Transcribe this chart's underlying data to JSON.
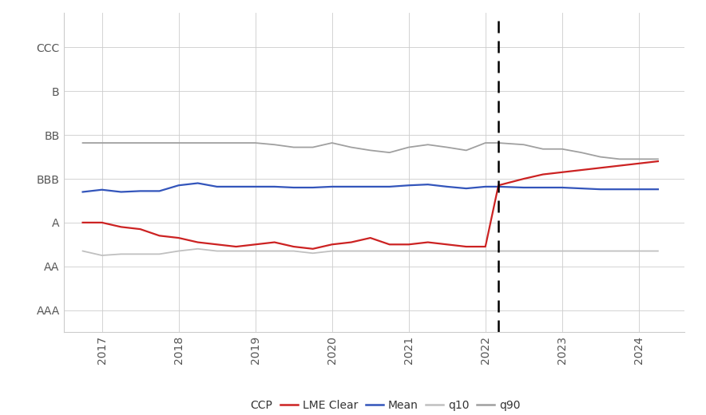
{
  "rating_labels": [
    "AAA",
    "AA",
    "A",
    "BBB",
    "BB",
    "B",
    "CCC"
  ],
  "rating_values": [
    1,
    2,
    3,
    4,
    5,
    6,
    7
  ],
  "dashed_line_x": 2022.17,
  "x_ticks": [
    2017,
    2018,
    2019,
    2020,
    2021,
    2022,
    2023,
    2024
  ],
  "xlim": [
    2016.5,
    2024.6
  ],
  "ylim": [
    0.5,
    7.8
  ],
  "background_color": "#ffffff",
  "grid_color": "#cccccc",
  "lme_clear": {
    "color": "#cc2222",
    "label": "LME Clear",
    "x": [
      2016.75,
      2017.0,
      2017.25,
      2017.5,
      2017.75,
      2018.0,
      2018.25,
      2018.5,
      2018.75,
      2019.0,
      2019.25,
      2019.5,
      2019.75,
      2020.0,
      2020.25,
      2020.5,
      2020.75,
      2021.0,
      2021.25,
      2021.5,
      2021.75,
      2022.0,
      2022.17,
      2022.5,
      2022.75,
      2023.0,
      2023.25,
      2023.5,
      2023.75,
      2024.0,
      2024.25
    ],
    "y": [
      3.0,
      3.0,
      2.9,
      2.85,
      2.7,
      2.65,
      2.55,
      2.5,
      2.45,
      2.5,
      2.55,
      2.45,
      2.4,
      2.5,
      2.55,
      2.65,
      2.5,
      2.5,
      2.55,
      2.5,
      2.45,
      2.45,
      3.85,
      4.0,
      4.1,
      4.15,
      4.2,
      4.25,
      4.3,
      4.35,
      4.4
    ]
  },
  "mean": {
    "color": "#3355bb",
    "label": "Mean",
    "x": [
      2016.75,
      2017.0,
      2017.25,
      2017.5,
      2017.75,
      2018.0,
      2018.25,
      2018.5,
      2018.75,
      2019.0,
      2019.25,
      2019.5,
      2019.75,
      2020.0,
      2020.25,
      2020.5,
      2020.75,
      2021.0,
      2021.25,
      2021.5,
      2021.75,
      2022.0,
      2022.17,
      2022.5,
      2022.75,
      2023.0,
      2023.25,
      2023.5,
      2023.75,
      2024.0,
      2024.25
    ],
    "y": [
      3.7,
      3.75,
      3.7,
      3.72,
      3.72,
      3.85,
      3.9,
      3.82,
      3.82,
      3.82,
      3.82,
      3.8,
      3.8,
      3.82,
      3.82,
      3.82,
      3.82,
      3.85,
      3.87,
      3.82,
      3.78,
      3.82,
      3.82,
      3.8,
      3.8,
      3.8,
      3.78,
      3.76,
      3.76,
      3.76,
      3.76
    ]
  },
  "q10": {
    "color": "#c0c0c0",
    "label": "q10",
    "x": [
      2016.75,
      2017.0,
      2017.25,
      2017.5,
      2017.75,
      2018.0,
      2018.25,
      2018.5,
      2018.75,
      2019.0,
      2019.25,
      2019.5,
      2019.75,
      2020.0,
      2020.25,
      2020.5,
      2020.75,
      2021.0,
      2021.25,
      2021.5,
      2021.75,
      2022.0,
      2022.17,
      2022.5,
      2022.75,
      2023.0,
      2023.25,
      2023.5,
      2023.75,
      2024.0,
      2024.25
    ],
    "y": [
      2.35,
      2.25,
      2.28,
      2.28,
      2.28,
      2.35,
      2.4,
      2.35,
      2.35,
      2.35,
      2.35,
      2.35,
      2.3,
      2.35,
      2.35,
      2.35,
      2.35,
      2.35,
      2.35,
      2.35,
      2.35,
      2.35,
      2.35,
      2.35,
      2.35,
      2.35,
      2.35,
      2.35,
      2.35,
      2.35,
      2.35
    ]
  },
  "q90": {
    "color": "#a0a0a0",
    "label": "q90",
    "x": [
      2016.75,
      2017.0,
      2017.25,
      2017.5,
      2017.75,
      2018.0,
      2018.25,
      2018.5,
      2018.75,
      2019.0,
      2019.25,
      2019.5,
      2019.75,
      2020.0,
      2020.25,
      2020.5,
      2020.75,
      2021.0,
      2021.25,
      2021.5,
      2021.75,
      2022.0,
      2022.17,
      2022.5,
      2022.75,
      2023.0,
      2023.25,
      2023.5,
      2023.75,
      2024.0,
      2024.25
    ],
    "y": [
      4.82,
      4.82,
      4.82,
      4.82,
      4.82,
      4.82,
      4.82,
      4.82,
      4.82,
      4.82,
      4.78,
      4.72,
      4.72,
      4.82,
      4.72,
      4.65,
      4.6,
      4.72,
      4.78,
      4.72,
      4.65,
      4.82,
      4.82,
      4.78,
      4.68,
      4.68,
      4.6,
      4.5,
      4.45,
      4.45,
      4.45
    ]
  }
}
